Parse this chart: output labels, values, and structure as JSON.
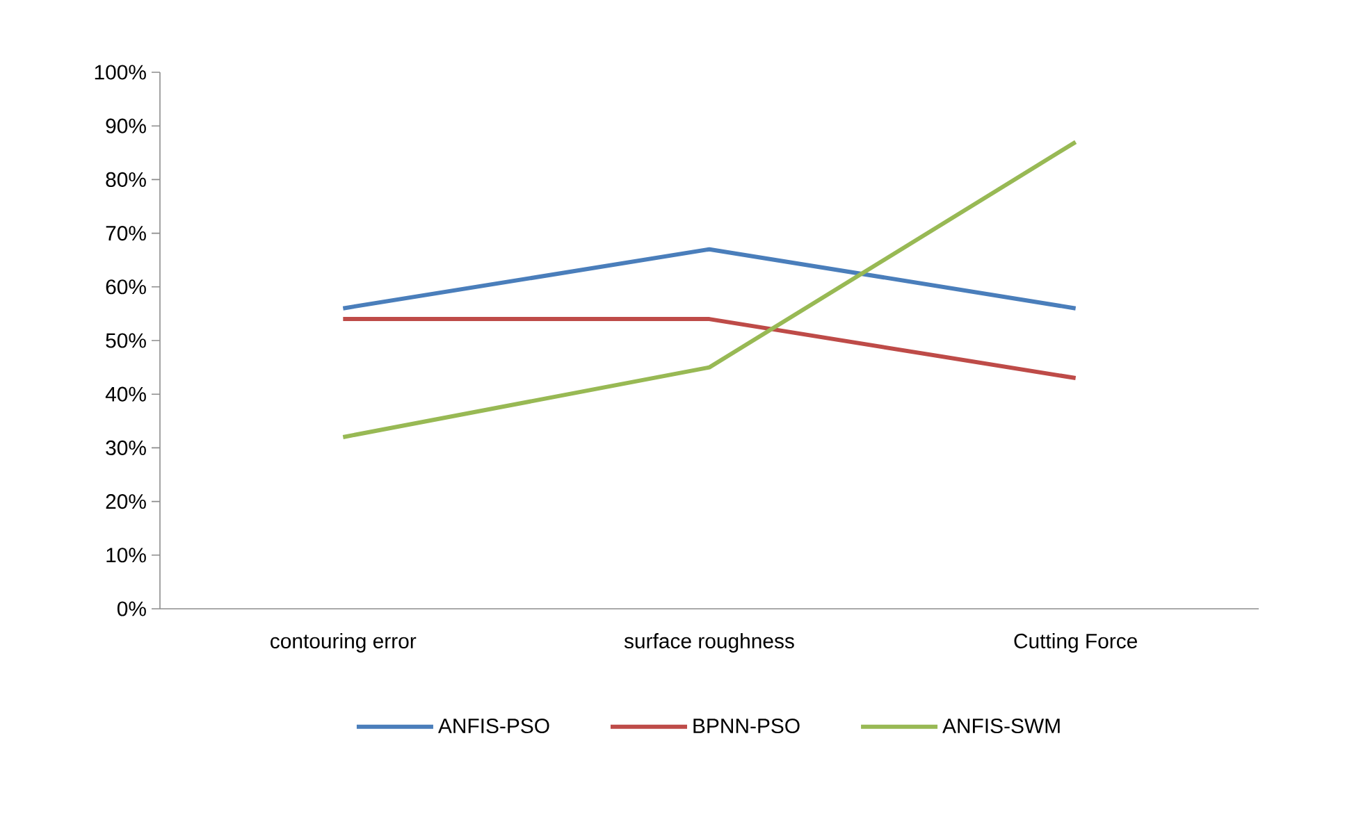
{
  "chart_data": {
    "type": "line",
    "categories": [
      "contouring error",
      "surface roughness",
      "Cutting Force"
    ],
    "series": [
      {
        "name": "ANFIS-PSO",
        "color": "#4a7ebb",
        "values": [
          56,
          67,
          56
        ]
      },
      {
        "name": "BPNN-PSO",
        "color": "#be4b48",
        "values": [
          54,
          54,
          43
        ]
      },
      {
        "name": "ANFIS-SWM",
        "color": "#98b954",
        "values": [
          32,
          45,
          87
        ]
      }
    ],
    "ylim": [
      0,
      100
    ],
    "yticks": [
      {
        "value": 0,
        "label": "0%"
      },
      {
        "value": 10,
        "label": "10%"
      },
      {
        "value": 20,
        "label": "20%"
      },
      {
        "value": 30,
        "label": "30%"
      },
      {
        "value": 40,
        "label": "40%"
      },
      {
        "value": 50,
        "label": "50%"
      },
      {
        "value": 60,
        "label": "60%"
      },
      {
        "value": 70,
        "label": "70%"
      },
      {
        "value": 80,
        "label": "80%"
      },
      {
        "value": 90,
        "label": "90%"
      },
      {
        "value": 100,
        "label": "100%"
      }
    ],
    "legend": "bottom"
  }
}
